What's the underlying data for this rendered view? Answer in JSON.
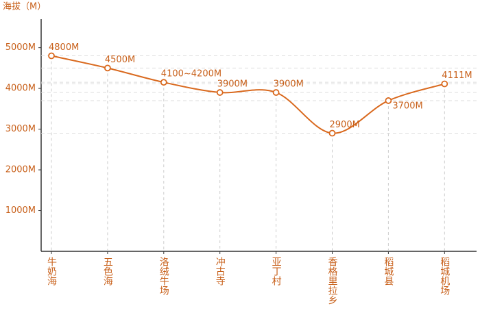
{
  "chart_data": {
    "type": "line",
    "y_axis_label": "海拔（M）",
    "categories": [
      "牛奶海",
      "五色海",
      "洛绒牛场",
      "冲古寺",
      "亚丁村",
      "香格里拉乡",
      "稻城县",
      "稻城机场"
    ],
    "values": [
      4800,
      4500,
      4150,
      3900,
      3900,
      2900,
      3700,
      4111
    ],
    "value_labels": [
      "4800M",
      "4500M",
      "4100~4200M",
      "3900M",
      "3900M",
      "2900M",
      "3700M",
      "4111M"
    ],
    "color": "#d9691e",
    "ylim": [
      0,
      5700
    ],
    "yticks": [
      {
        "value": 1000,
        "label": "1000M"
      },
      {
        "value": 2000,
        "label": "2000M"
      },
      {
        "value": 3000,
        "label": "3000M"
      },
      {
        "value": 4000,
        "label": "4000M"
      },
      {
        "value": 5000,
        "label": "5000M"
      }
    ],
    "guides": true
  }
}
